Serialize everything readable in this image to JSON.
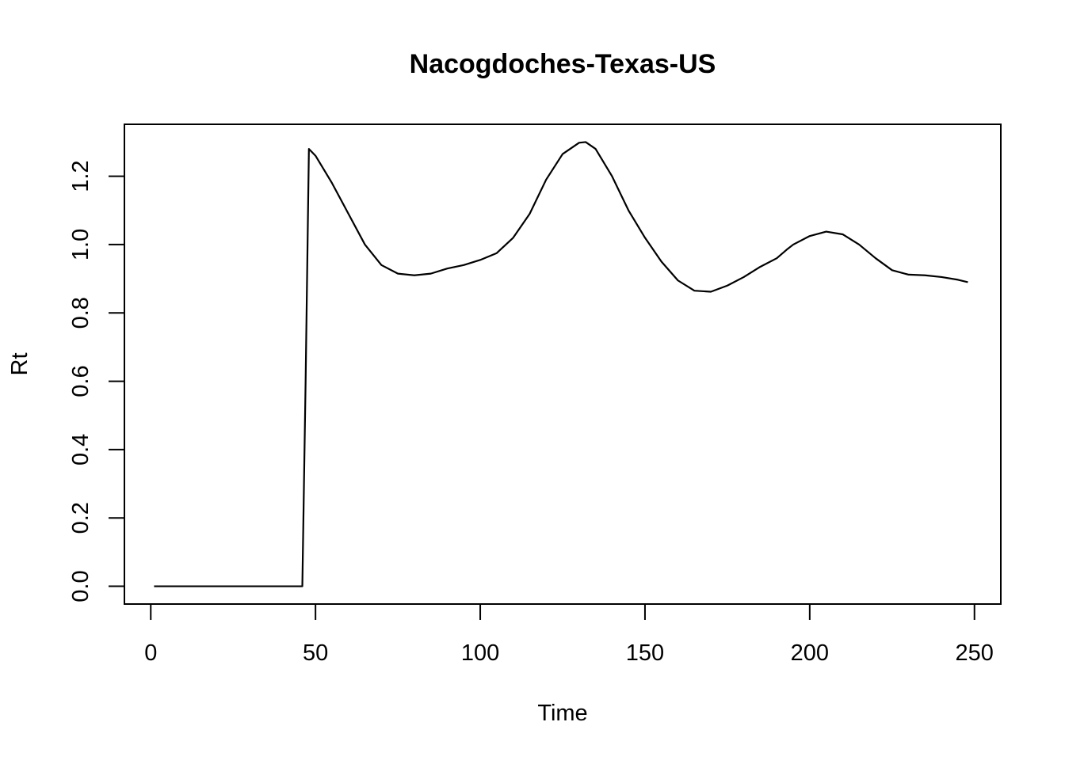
{
  "chart_data": {
    "type": "line",
    "title": "Nacogdoches-Texas-US",
    "xlabel": "Time",
    "ylabel": "Rt",
    "xlim": [
      -8,
      258
    ],
    "ylim": [
      -0.052,
      1.352
    ],
    "x_ticks": [
      0,
      50,
      100,
      150,
      200,
      250
    ],
    "y_ticks": [
      0.0,
      0.2,
      0.4,
      0.6,
      0.8,
      1.0,
      1.2
    ],
    "x_tick_labels": [
      "0",
      "50",
      "100",
      "150",
      "200",
      "250"
    ],
    "y_tick_labels": [
      "0.0",
      "0.2",
      "0.4",
      "0.6",
      "0.8",
      "1.0",
      "1.2"
    ],
    "grid": false,
    "legend": "none",
    "line_color": "#000000",
    "series": [
      {
        "x": [
          1,
          10,
          20,
          30,
          40,
          46,
          47,
          48,
          50,
          55,
          60,
          65,
          70,
          75,
          80,
          85,
          90,
          95,
          100,
          105,
          110,
          115,
          120,
          125,
          130,
          132,
          135,
          140,
          145,
          150,
          155,
          160,
          165,
          170,
          175,
          180,
          185,
          190,
          193,
          195,
          200,
          205,
          210,
          215,
          220,
          225,
          230,
          235,
          240,
          245,
          248
        ],
        "y": [
          0,
          0,
          0,
          0,
          0,
          0,
          0.6,
          1.28,
          1.26,
          1.18,
          1.09,
          1.0,
          0.94,
          0.915,
          0.91,
          0.915,
          0.93,
          0.94,
          0.955,
          0.975,
          1.02,
          1.09,
          1.19,
          1.265,
          1.298,
          1.3,
          1.28,
          1.2,
          1.1,
          1.02,
          0.95,
          0.895,
          0.865,
          0.862,
          0.88,
          0.905,
          0.935,
          0.96,
          0.985,
          1.0,
          1.025,
          1.038,
          1.03,
          1.0,
          0.96,
          0.925,
          0.912,
          0.91,
          0.905,
          0.897,
          0.89
        ]
      }
    ]
  }
}
